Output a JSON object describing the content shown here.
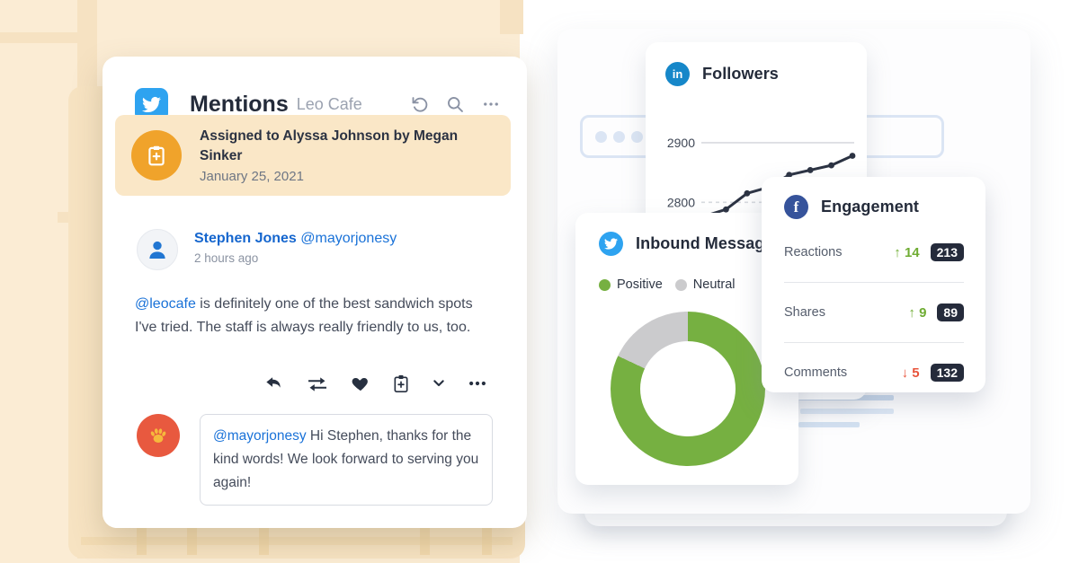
{
  "page": {
    "bg_left_color": "#FBECD4",
    "bg_right_color": "#FFFFFF"
  },
  "colors": {
    "twitter_blue": "#2EA3F0",
    "linkedin_blue": "#1687C9",
    "facebook_navy": "#36539B",
    "accent_orange": "#F0A32B",
    "banner_bg": "#FAE7C7",
    "link_blue": "#1A72D8",
    "positive_green": "#76B041",
    "neutral_gray": "#CBCBCD",
    "up_green": "#6FAC33",
    "down_red": "#E8543C",
    "badge_navy": "#252B3B",
    "dark_text": "#242B3A",
    "chart_line_dark": "#2B3242",
    "chart_line_blue": "#1E62C7"
  },
  "mentions_card": {
    "network": "twitter",
    "title": "Mentions",
    "subtitle": "Leo Cafe",
    "toolbar": {
      "undo_icon": "undo",
      "search_icon": "search",
      "more_icon": "more"
    },
    "assignment": {
      "title": "Assigned to Alyssa Johnson by Megan Sinker",
      "date": "January 25, 2021"
    },
    "tweet": {
      "author": "Stephen Jones",
      "handle": "@mayorjonesy",
      "time": "2 hours ago",
      "mention": "@leocafe",
      "body_rest": " is definitely one of the best sandwich spots I've tried. The staff is always really friendly to us, too."
    },
    "reply": {
      "mention": "@mayorjonesy",
      "body_rest": " Hi Stephen, thanks for the kind words! We look forward to serving you again!"
    }
  },
  "followers_card": {
    "network": "linkedin",
    "badge_text": "in",
    "title": "Followers"
  },
  "engagement_card": {
    "network": "facebook",
    "badge_text": "f",
    "title": "Engagement",
    "rows": [
      {
        "label": "Reactions",
        "arrow": "↑",
        "direction": "up",
        "delta": "14",
        "value": "213"
      },
      {
        "label": "Shares",
        "arrow": "↑",
        "direction": "up",
        "delta": "9",
        "value": "89"
      },
      {
        "label": "Comments",
        "arrow": "↓",
        "direction": "down",
        "delta": "5",
        "value": "132"
      }
    ]
  },
  "inbound_card": {
    "network": "twitter",
    "title": "Inbound Messages",
    "legend": [
      {
        "label": "Positive",
        "color": "#76B041"
      },
      {
        "label": "Neutral",
        "color": "#CBCBCD"
      }
    ]
  },
  "chart_data": [
    {
      "type": "line",
      "title": "Followers",
      "x": [
        1,
        2,
        3,
        4,
        5,
        6,
        7,
        8
      ],
      "series": [
        {
          "name": "followers-dark",
          "color": "#2B3242",
          "values": [
            2777,
            2788,
            2815,
            2825,
            2846,
            2854,
            2862,
            2878
          ]
        },
        {
          "name": "followers-blue",
          "color": "#1E62C7",
          "values": [
            2726,
            2744,
            2747,
            2752,
            2780,
            2797,
            2804,
            2831
          ]
        }
      ],
      "ylim": [
        2713,
        2921
      ],
      "gridlines": [
        {
          "value": 2900,
          "style": "solid"
        },
        {
          "value": 2800,
          "style": "dashed"
        }
      ],
      "legend_position": "none",
      "grid": true
    },
    {
      "type": "pie",
      "title": "Inbound Messages sentiment",
      "labels": [
        "Positive",
        "Neutral"
      ],
      "values": [
        82,
        18
      ],
      "colors": [
        "#76B041",
        "#CBCBCD"
      ],
      "donut": true,
      "legend_position": "top"
    }
  ]
}
